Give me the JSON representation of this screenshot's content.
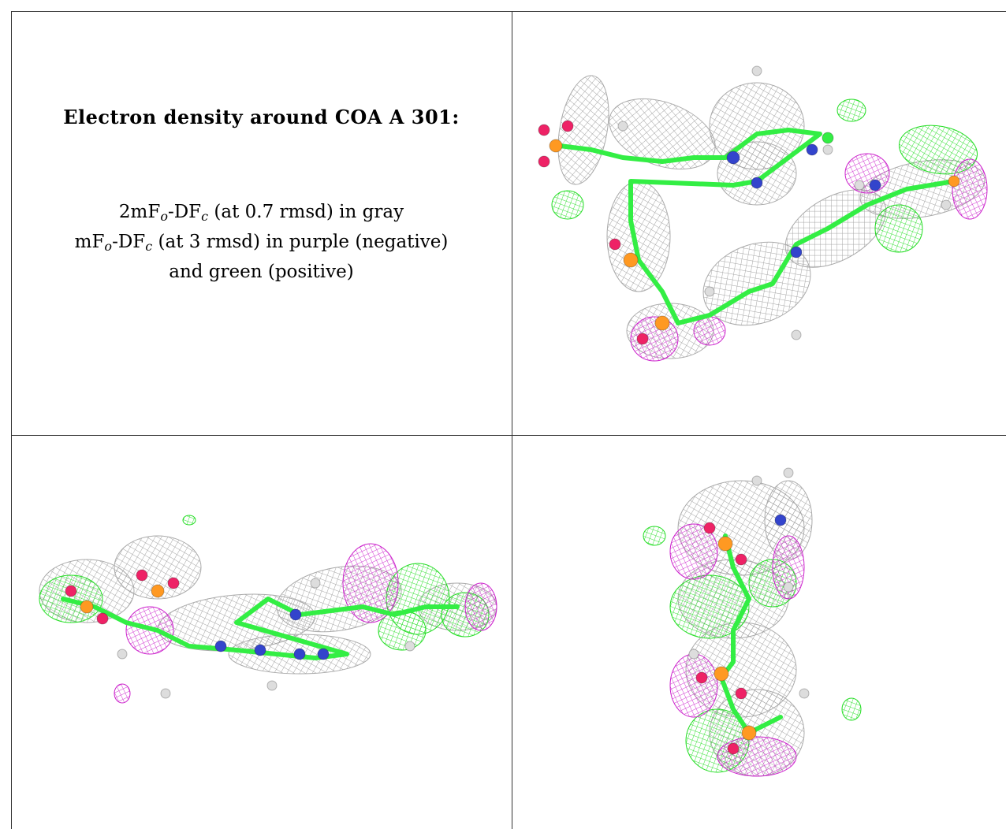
{
  "caption": {
    "title": "Electron density around COA A 301:",
    "lines": [
      [
        {
          "text": "2mF"
        },
        {
          "text": "o",
          "sub": true
        },
        {
          "text": "-DF"
        },
        {
          "text": "c",
          "sub": true
        },
        {
          "text": " (at 0.7 rmsd) in gray"
        }
      ],
      [
        {
          "text": "mF"
        },
        {
          "text": "o",
          "sub": true
        },
        {
          "text": "-DF"
        },
        {
          "text": "c",
          "sub": true
        },
        {
          "text": " (at 3 rmsd) in purple (negative)"
        }
      ],
      [
        {
          "text": "and green (positive)"
        }
      ]
    ]
  }
}
